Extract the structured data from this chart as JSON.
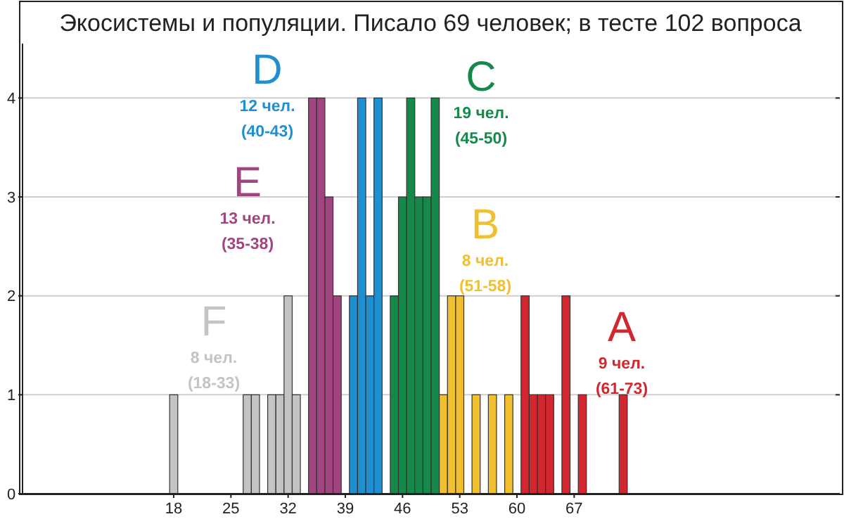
{
  "chart_data": {
    "type": "bar",
    "title": "Экосистемы и популяции. Писало 69 человек; в тесте 102 вопроса",
    "series": [
      {
        "name": "F",
        "color": "#c4c4c4",
        "x": [
          18,
          27,
          28,
          30,
          31,
          32,
          33
        ],
        "values": [
          1,
          1,
          1,
          1,
          1,
          2,
          1
        ]
      },
      {
        "name": "E",
        "color": "#a0457f",
        "x": [
          35,
          36,
          37,
          38
        ],
        "values": [
          4,
          4,
          3,
          2
        ]
      },
      {
        "name": "D",
        "color": "#1e8fd0",
        "x": [
          40,
          41,
          42,
          43
        ],
        "values": [
          2,
          4,
          2,
          4
        ]
      },
      {
        "name": "C",
        "color": "#15894a",
        "x": [
          45,
          46,
          47,
          48,
          49,
          50
        ],
        "values": [
          2,
          3,
          4,
          3,
          3,
          4
        ]
      },
      {
        "name": "B",
        "color": "#f0c030",
        "x": [
          51,
          52,
          53,
          55,
          57,
          59
        ],
        "values": [
          1,
          2,
          2,
          1,
          1,
          1
        ]
      },
      {
        "name": "A",
        "color": "#d3262e",
        "x": [
          61,
          62,
          63,
          64,
          66,
          68,
          73
        ],
        "values": [
          2,
          1,
          1,
          1,
          2,
          1,
          1
        ]
      }
    ],
    "annotations": [
      "8 чел.",
      "(18-33)",
      "13 чел.",
      "(35-38)",
      "12 чел.",
      "(40-43)",
      "19 чел.",
      "(45-50)",
      "8 чел.",
      "(51-58)",
      "9 чел.",
      "(61-73)"
    ],
    "xlim": [
      -0.5,
      99.5
    ],
    "xticks": [
      18,
      25,
      32,
      39,
      46,
      53,
      60,
      67
    ],
    "ylim": [
      0,
      4.55
    ],
    "yticks": [
      0,
      1,
      2,
      3,
      4
    ],
    "grid": "y"
  }
}
